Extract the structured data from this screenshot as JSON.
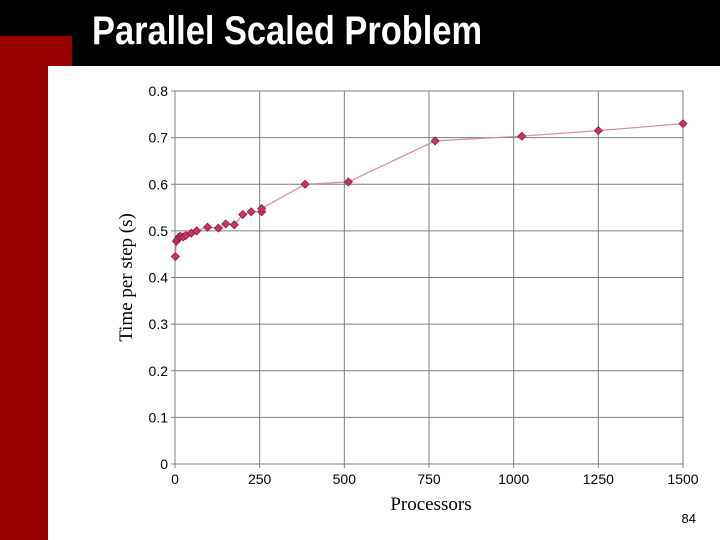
{
  "slide": {
    "title": "Parallel Scaled Problem",
    "page_number": "84"
  },
  "colors": {
    "title_bar": "#000000",
    "accent_bar": "#990000",
    "series": "#cc3366",
    "series_line": "#d9889f",
    "grid": "#7f7f7f"
  },
  "chart_data": {
    "type": "line",
    "title": "",
    "xlabel": "Processors",
    "ylabel": "Time per step (s)",
    "xlim": [
      0,
      1500
    ],
    "ylim": [
      0,
      0.8
    ],
    "x_ticks": [
      0,
      250,
      500,
      750,
      1000,
      1250,
      1500
    ],
    "y_ticks": [
      "0",
      "0.1",
      "0.2",
      "0.3",
      "0.4",
      "0.5",
      "0.6",
      "0.7",
      "0.8"
    ],
    "grid": true,
    "legend": "none",
    "series": [
      {
        "x": [
          1,
          4,
          8,
          12,
          16,
          24,
          32,
          48,
          64,
          96,
          128,
          150,
          175,
          200,
          225,
          256,
          256,
          384,
          512,
          768,
          1024,
          1250,
          1500
        ],
        "y": [
          0.445,
          0.478,
          0.482,
          0.487,
          0.488,
          0.487,
          0.49,
          0.495,
          0.5,
          0.508,
          0.506,
          0.515,
          0.513,
          0.535,
          0.541,
          0.541,
          0.548,
          0.6,
          0.605,
          0.693,
          0.703,
          0.715,
          0.73
        ]
      }
    ]
  }
}
